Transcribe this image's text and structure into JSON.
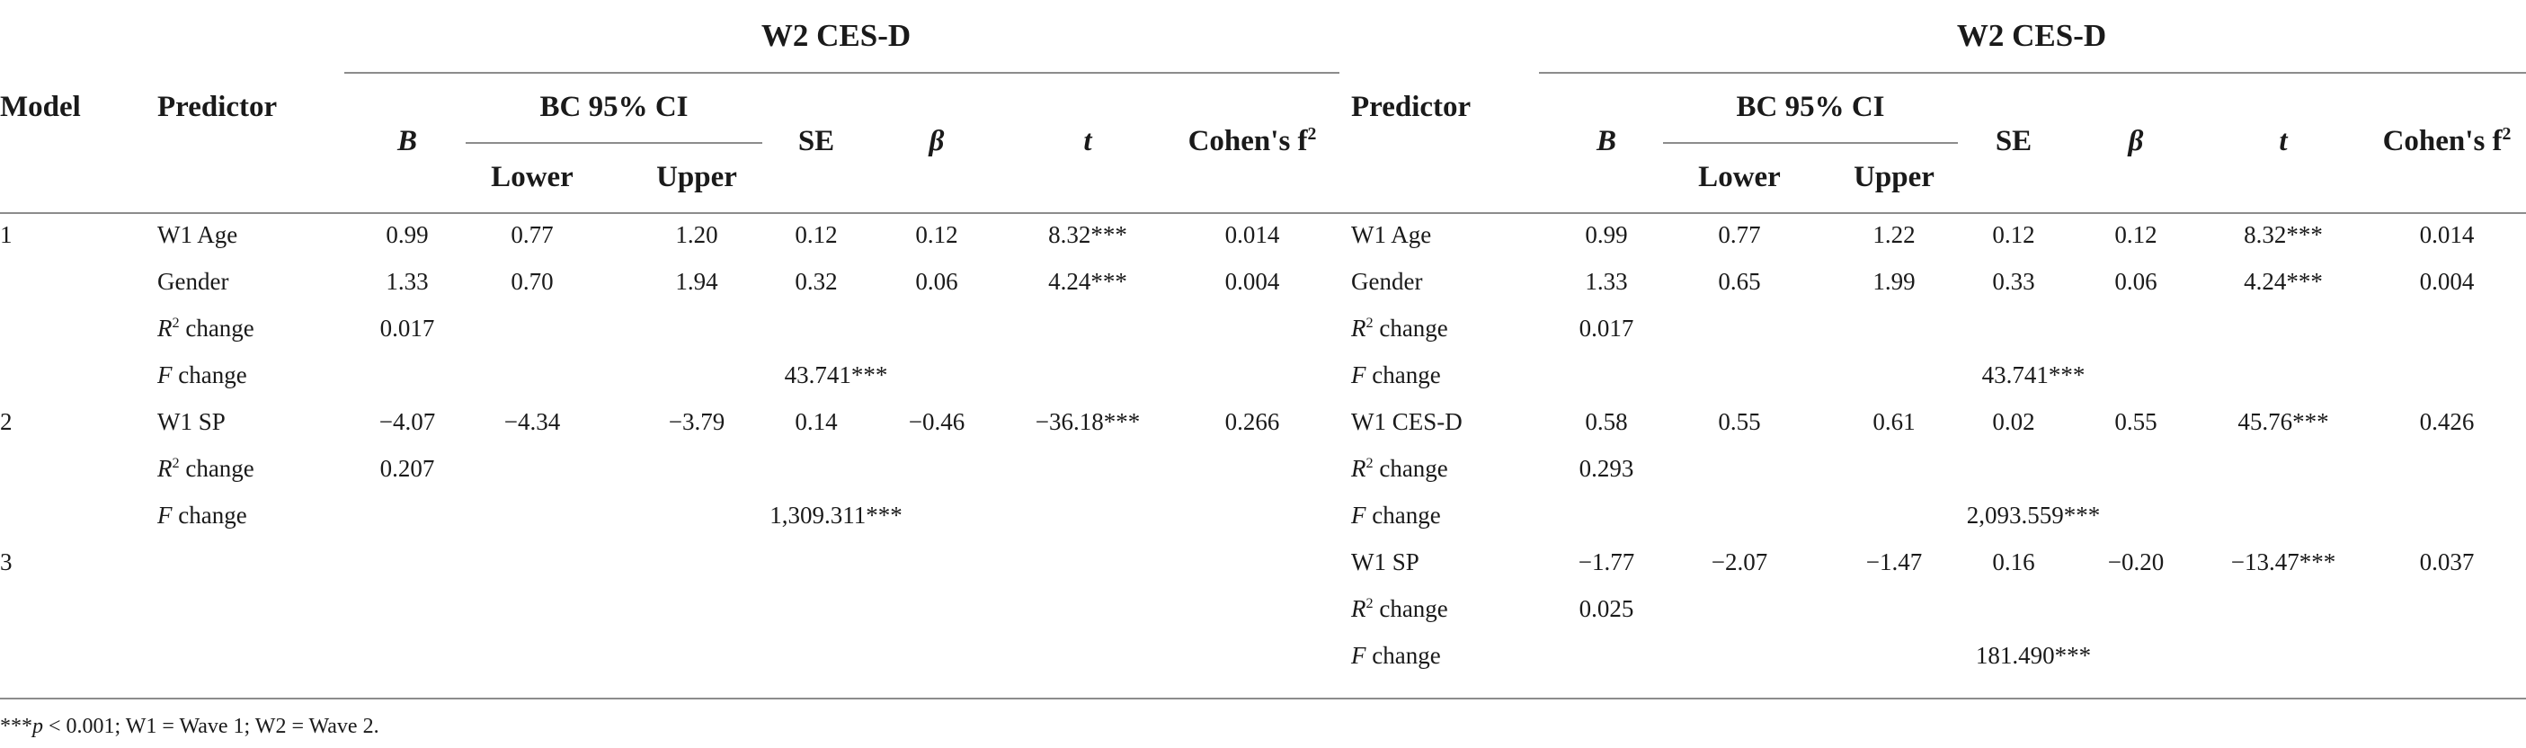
{
  "header": {
    "model": "Model",
    "predictor": "Predictor",
    "group_left": "W2 CES-D",
    "group_right": "W2 CES-D",
    "b": "B",
    "ci": "BC 95% CI",
    "lower": "Lower",
    "upper": "Upper",
    "se": "SE",
    "beta": "β",
    "t": "t",
    "cohen": "Cohen's f",
    "cohen_sup": "2"
  },
  "labels": {
    "r2_letter": "R",
    "r2_sup": "2",
    "r2_rest": " change",
    "f_letter": "F",
    "f_rest": " change"
  },
  "rows": [
    {
      "model": "1",
      "left": {
        "predictor": "W1 Age",
        "b": "0.99",
        "lower": "0.77",
        "upper": "1.20",
        "se": "0.12",
        "beta": "0.12",
        "t": "8.32",
        "t_stars": "***",
        "f2": "0.014"
      },
      "right": {
        "predictor": "W1 Age",
        "b": "0.99",
        "lower": "0.77",
        "upper": "1.22",
        "se": "0.12",
        "beta": "0.12",
        "t": "8.32",
        "t_stars": "***",
        "f2": "0.014"
      }
    },
    {
      "model": "",
      "left": {
        "predictor": "Gender",
        "b": "1.33",
        "lower": "0.70",
        "upper": "1.94",
        "se": "0.32",
        "beta": "0.06",
        "t": "4.24",
        "t_stars": "***",
        "f2": "0.004"
      },
      "right": {
        "predictor": "Gender",
        "b": "1.33",
        "lower": "0.65",
        "upper": "1.99",
        "se": "0.33",
        "beta": "0.06",
        "t": "4.24",
        "t_stars": "***",
        "f2": "0.004"
      }
    },
    {
      "model": "",
      "left": {
        "r2": "0.017"
      },
      "right": {
        "r2": "0.017"
      }
    },
    {
      "model": "",
      "left": {
        "fchange": "43.741",
        "f_stars": "***"
      },
      "right": {
        "fchange": "43.741",
        "f_stars": "***"
      }
    },
    {
      "model": "2",
      "left": {
        "predictor": "W1 SP",
        "b": "−4.07",
        "lower": "−4.34",
        "upper": "−3.79",
        "se": "0.14",
        "beta": "−0.46",
        "t": "−36.18",
        "t_stars": "***",
        "f2": "0.266"
      },
      "right": {
        "predictor": "W1 CES-D",
        "b": "0.58",
        "lower": "0.55",
        "upper": "0.61",
        "se": "0.02",
        "beta": "0.55",
        "t": "45.76",
        "t_stars": "***",
        "f2": "0.426"
      }
    },
    {
      "model": "",
      "left": {
        "r2": "0.207"
      },
      "right": {
        "r2": "0.293"
      }
    },
    {
      "model": "",
      "left": {
        "fchange": "1,309.311",
        "f_stars": "***"
      },
      "right": {
        "fchange": "2,093.559",
        "f_stars": "***"
      }
    },
    {
      "model": "3",
      "right": {
        "predictor": "W1 SP",
        "b": "−1.77",
        "lower": "−2.07",
        "upper": "−1.47",
        "se": "0.16",
        "beta": "−0.20",
        "t": "−13.47",
        "t_stars": "***",
        "f2": "0.037"
      }
    },
    {
      "model": "",
      "right": {
        "r2": "0.025"
      }
    },
    {
      "model": "",
      "right": {
        "fchange": "181.490",
        "f_stars": "***"
      }
    }
  ],
  "footnote": {
    "stars": "***",
    "p": "p",
    "rest": " < 0.001; W1 = Wave 1; W2 = Wave 2."
  }
}
